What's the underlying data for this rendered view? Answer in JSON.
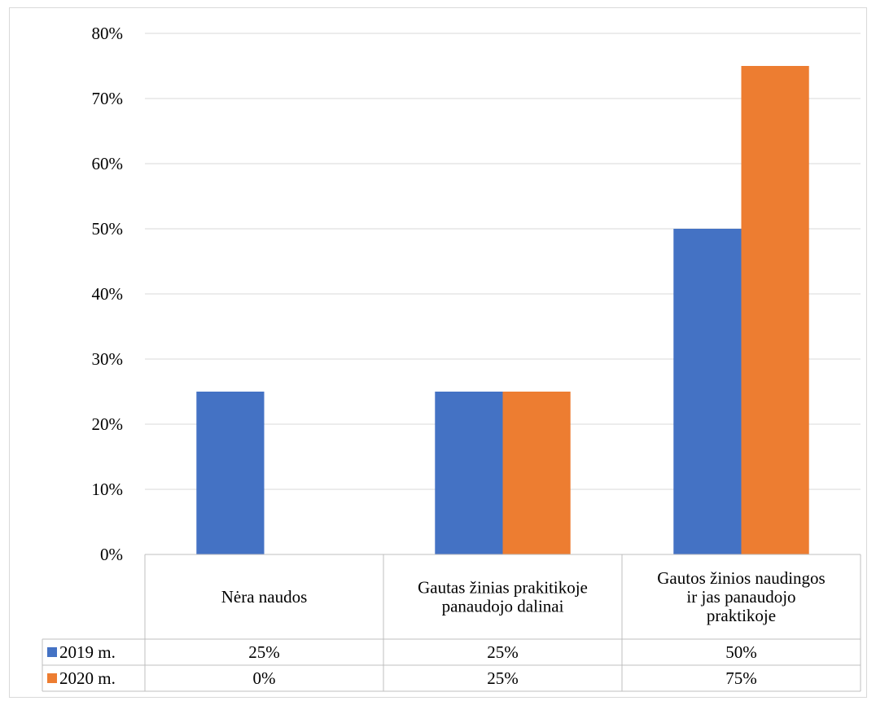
{
  "chart_data": {
    "type": "bar",
    "categories": [
      [
        "Nėra naudos"
      ],
      [
        "Gautas žinias prakitikoje",
        "panaudojo dalinai"
      ],
      [
        "Gautos žinios naudingos",
        "ir jas panaudojo",
        "praktikoje"
      ]
    ],
    "series": [
      {
        "name": "2019 m.",
        "color": "#4472C4",
        "values": [
          25,
          25,
          50
        ],
        "labels": [
          "25%",
          "25%",
          "50%"
        ]
      },
      {
        "name": "2020 m.",
        "color": "#ED7D31",
        "values": [
          0,
          25,
          75
        ],
        "labels": [
          "0%",
          "25%",
          "75%"
        ]
      }
    ],
    "ylim": [
      0,
      80
    ],
    "yticks": [
      "0%",
      "10%",
      "20%",
      "30%",
      "40%",
      "50%",
      "60%",
      "70%",
      "80%"
    ],
    "grid": true,
    "legend": "data-table"
  }
}
